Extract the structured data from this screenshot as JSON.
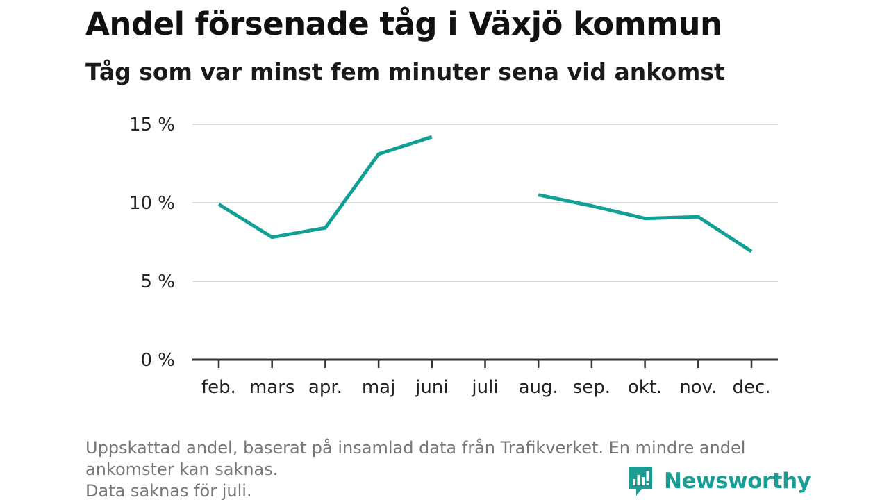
{
  "header": {
    "title": "Andel försenade tåg i Växjö kommun",
    "subtitle": "Tåg som var minst fem minuter sena vid ankomst"
  },
  "chart_data": {
    "type": "line",
    "categories": [
      "feb.",
      "mars",
      "apr.",
      "maj",
      "juni",
      "juli",
      "aug.",
      "sep.",
      "okt.",
      "nov.",
      "dec."
    ],
    "series": [
      {
        "values": [
          9.9,
          7.8,
          8.4,
          13.1,
          14.2,
          null,
          10.5,
          9.8,
          9.0,
          9.1,
          6.9
        ],
        "color": "#12a096"
      }
    ],
    "y_ticks": [
      0,
      5,
      10,
      15
    ],
    "y_tick_labels": [
      "0 %",
      "5 %",
      "10 %",
      "15 %"
    ],
    "ylim": [
      0,
      15
    ],
    "grid": true
  },
  "footnote": {
    "lines": [
      "Uppskattad andel, baserat på insamlad data från Trafikverket. En mindre andel",
      "ankomster kan saknas.",
      "Data saknas för juli."
    ]
  },
  "brand": {
    "name": "Newsworthy",
    "logo_icon": "newsworthy-bar-chart-icon",
    "color": "#1a9e93"
  }
}
